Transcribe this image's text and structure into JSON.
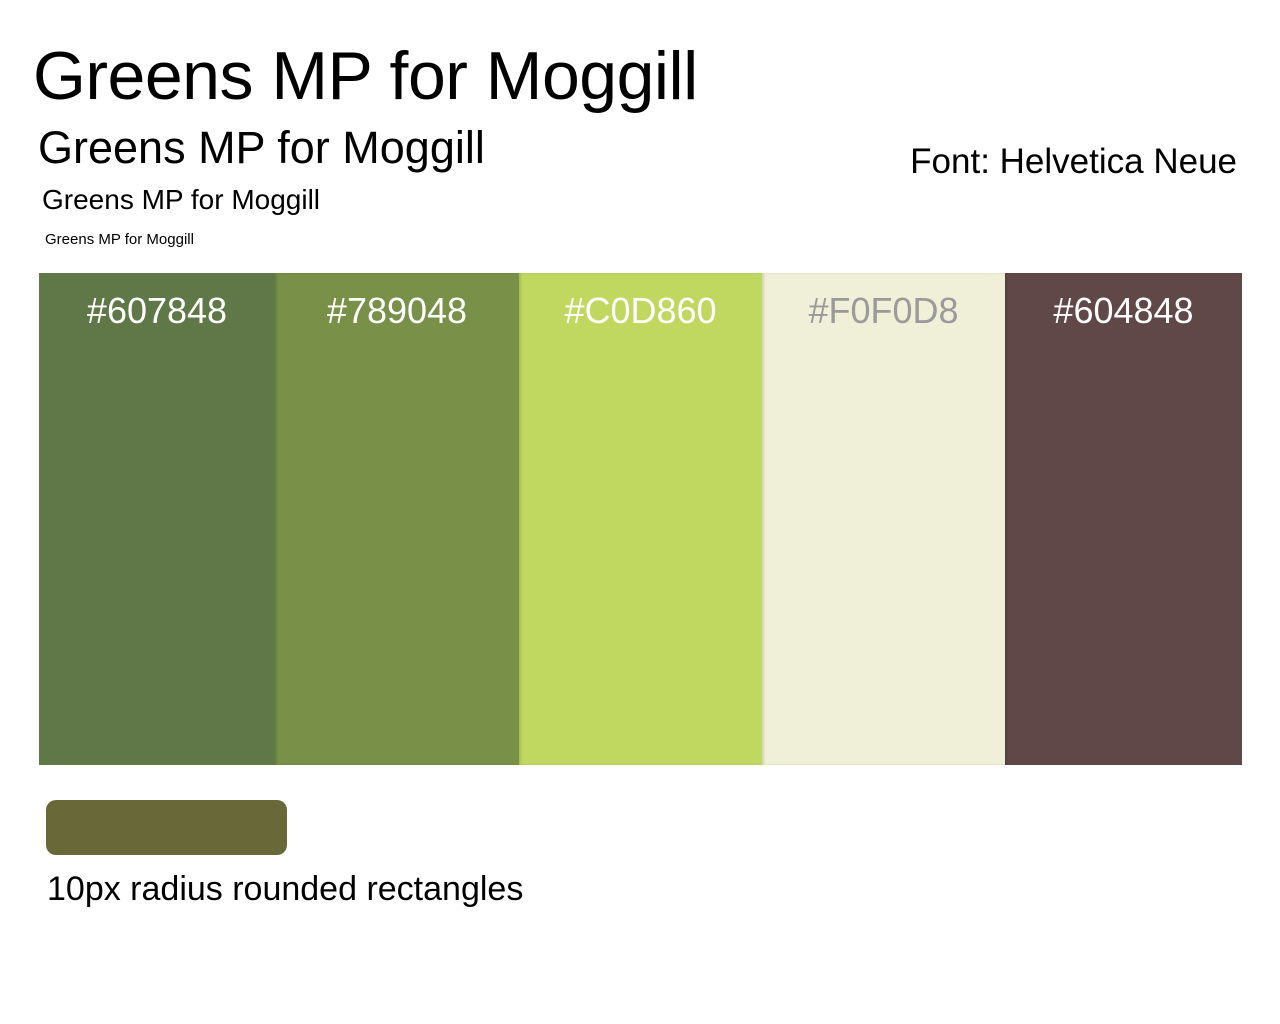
{
  "headings": {
    "xl": "Greens MP for Moggill",
    "lg": "Greens MP for Moggill",
    "md": "Greens MP for Moggill",
    "sm": "Greens MP for Moggill"
  },
  "font_note": "Font: Helvetica Neue",
  "palette": [
    {
      "hex": "#607848",
      "label_color": "#ffffff"
    },
    {
      "hex": "#789048",
      "label_color": "#ffffff"
    },
    {
      "hex": "#C0D860",
      "label_color": "#ffffff"
    },
    {
      "hex": "#F0F0D8",
      "label_color": "#9a9a9a"
    },
    {
      "hex": "#604848",
      "label_color": "#ffffff"
    }
  ],
  "sample": {
    "color": "#686838",
    "caption": "10px radius rounded rectangles"
  }
}
